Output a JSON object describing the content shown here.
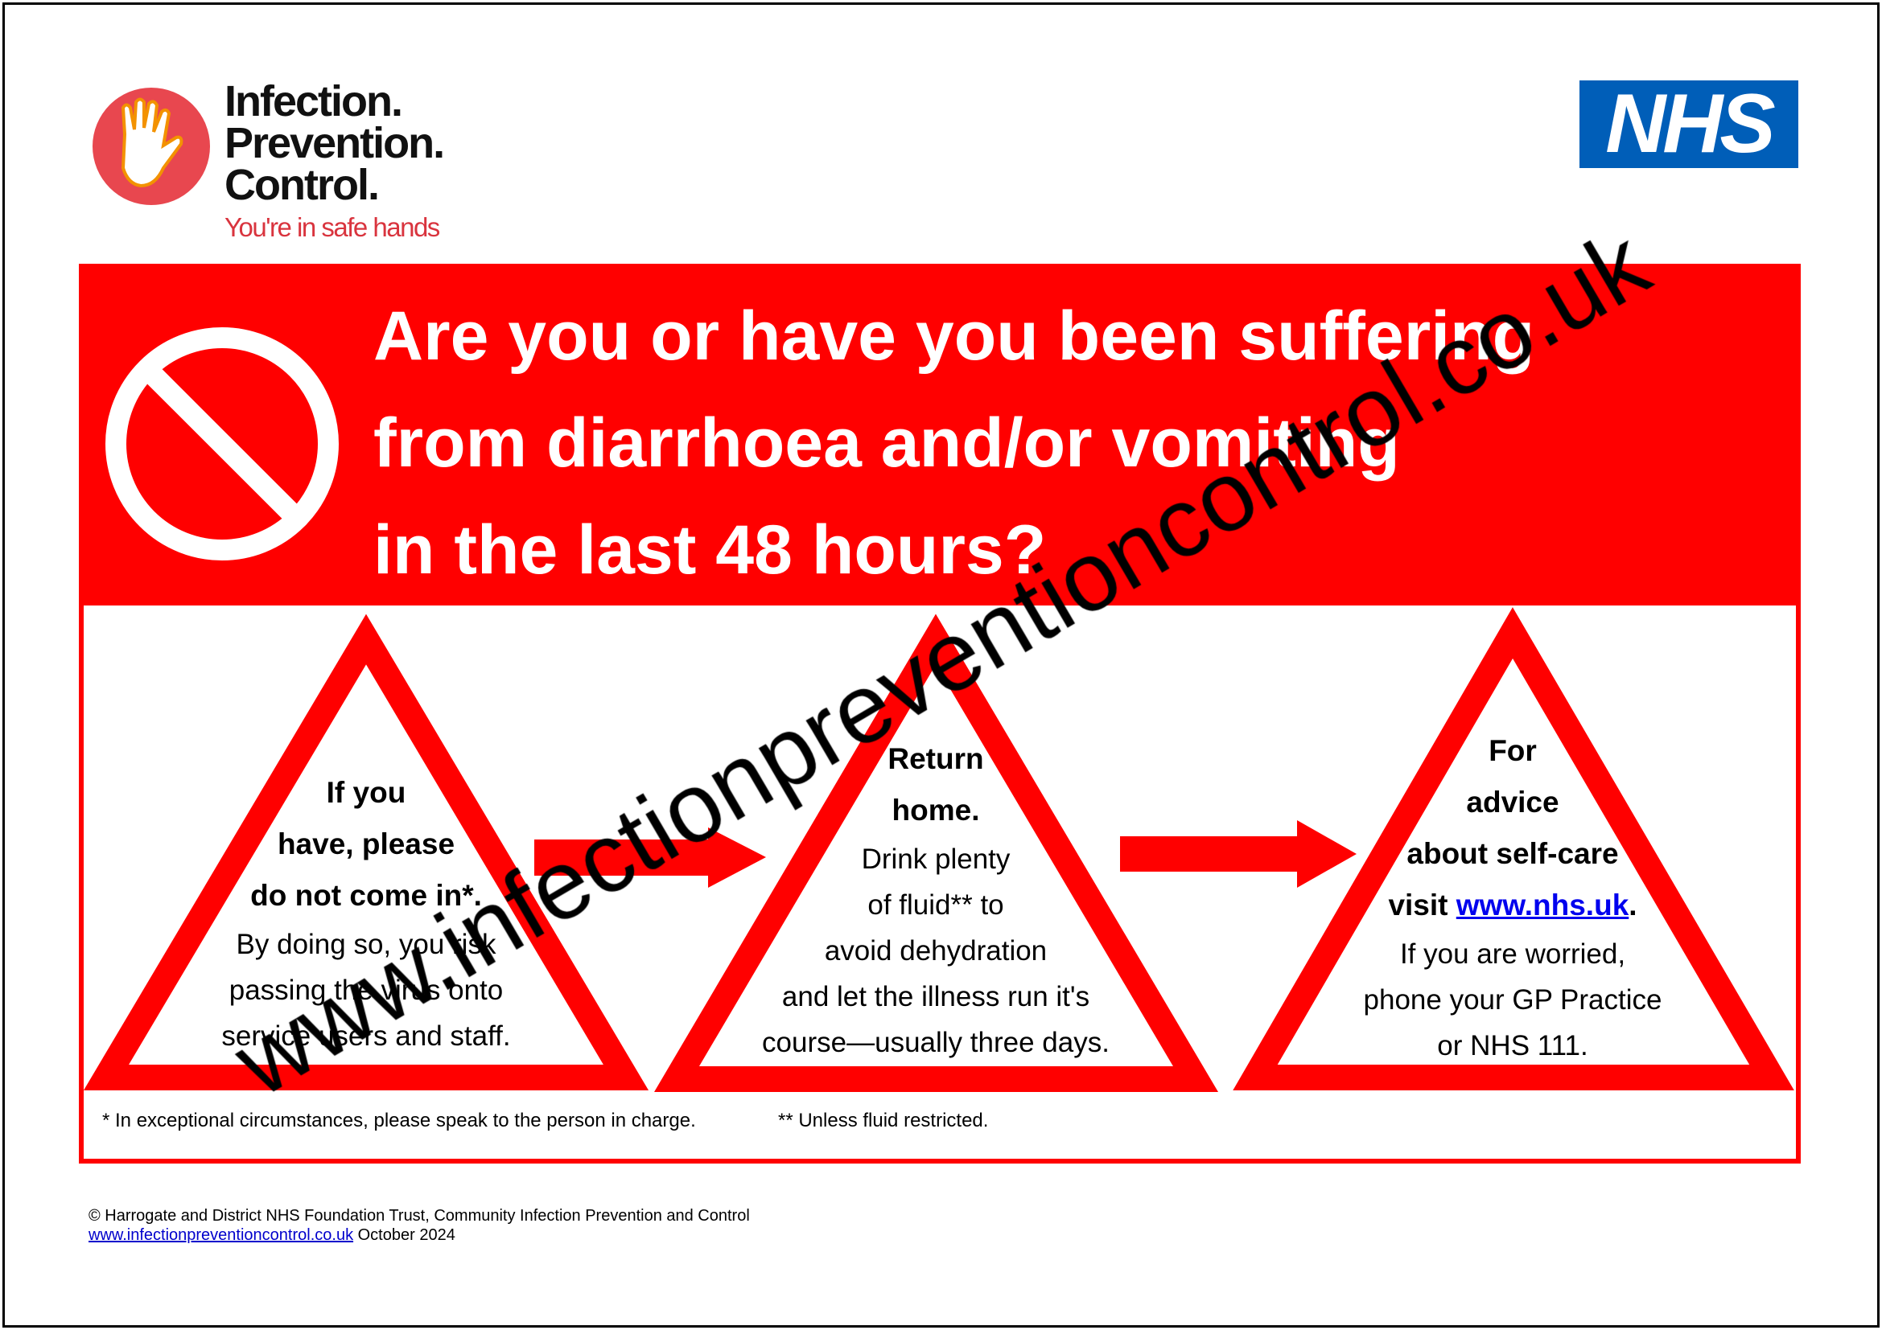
{
  "logo": {
    "lines": [
      "Infection.",
      "Prevention.",
      "Control."
    ],
    "tagline": "You're in safe hands",
    "colors": {
      "circle": "#e8474f",
      "hand": "#ffffff",
      "outline": "#f39200"
    }
  },
  "nhs_logo": {
    "text": "NHS",
    "color": "#005eb8"
  },
  "banner": {
    "icon": "prohibited-icon",
    "title_lines": [
      "Are you or have you been suffering",
      "from diarrhoea and/or vomiting",
      "in the last 48 hours?"
    ],
    "color": "#ff0000"
  },
  "steps": [
    {
      "bold": [
        "If you",
        "have, please",
        "do not come in*."
      ],
      "text": [
        "By doing so, you risk",
        "passing the virus onto",
        "service users and staff."
      ]
    },
    {
      "bold": [
        "Return",
        "home."
      ],
      "text": [
        "Drink plenty",
        "of fluid** to",
        "avoid dehydration",
        "and let the illness run it's",
        "course—usually three days."
      ]
    },
    {
      "bold": [
        "For",
        "advice",
        "about self-care"
      ],
      "link_prefix": "visit ",
      "link": "www.nhs.uk",
      "link_suffix": ".",
      "text": [
        "If you are worried,",
        "phone your GP Practice",
        "or NHS 111."
      ]
    }
  ],
  "notes": {
    "note1": "* In exceptional circumstances, please speak to the person in charge.",
    "note2": "** Unless fluid restricted."
  },
  "footer": {
    "copyright": "© Harrogate and District NHS Foundation Trust, Community Infection Prevention and Control",
    "link": "www.infectionpreventioncontrol.co.uk",
    "date": " October 2024"
  },
  "watermark": "www.infectionpreventioncontrol.co.uk"
}
